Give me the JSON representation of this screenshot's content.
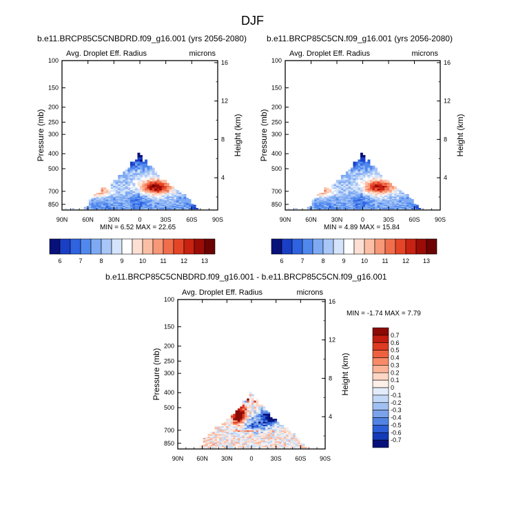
{
  "figure_title": "DJF",
  "chart_data": [
    {
      "type": "heatmap",
      "title": "b.e11.BRCP85C5CNBDRD.f09_g16.001 (yrs 2056-2080)",
      "left_label": "Avg. Droplet Eff. Radius",
      "right_label": "microns",
      "xlabel": "",
      "ylabel": "Pressure (mb)",
      "y2label": "Height (km)",
      "x_ticks": [
        "90N",
        "60N",
        "30N",
        "0",
        "30S",
        "60S",
        "90S"
      ],
      "y_ticks": [
        "100",
        "150",
        "200",
        "250",
        "300",
        "400",
        "500",
        "700",
        "850"
      ],
      "y2_ticks": [
        "16",
        "12",
        "8",
        "4"
      ],
      "stats": "MIN =   6.52  MAX =  22.65",
      "colorbar": {
        "labels": [
          "6",
          "7",
          "8",
          "9",
          "10",
          "11",
          "12",
          "13"
        ],
        "colors": [
          "#08107a",
          "#1a3fc4",
          "#2f63e0",
          "#5188ee",
          "#7eaaf3",
          "#a8c6f7",
          "#d5e4fa",
          "#ffffff",
          "#fde0d3",
          "#fbbfa5",
          "#f79878",
          "#f16e4c",
          "#e44527",
          "#c72212",
          "#9b0c07",
          "#6b0303"
        ]
      }
    },
    {
      "type": "heatmap",
      "title": "b.e11.BRCP85C5CN.f09_g16.001 (yrs 2056-2080)",
      "left_label": "Avg. Droplet Eff. Radius",
      "right_label": "microns",
      "xlabel": "",
      "ylabel": "Pressure (mb)",
      "y2label": "Height (km)",
      "x_ticks": [
        "90N",
        "60N",
        "30N",
        "0",
        "30S",
        "60S",
        "90S"
      ],
      "y_ticks": [
        "100",
        "150",
        "200",
        "250",
        "300",
        "400",
        "500",
        "700",
        "850"
      ],
      "y2_ticks": [
        "16",
        "12",
        "8",
        "4"
      ],
      "stats": "MIN =   4.89  MAX =  15.84",
      "colorbar": {
        "labels": [
          "6",
          "7",
          "8",
          "9",
          "10",
          "11",
          "12",
          "13"
        ],
        "colors": [
          "#08107a",
          "#1a3fc4",
          "#2f63e0",
          "#5188ee",
          "#7eaaf3",
          "#a8c6f7",
          "#d5e4fa",
          "#ffffff",
          "#fde0d3",
          "#fbbfa5",
          "#f79878",
          "#f16e4c",
          "#e44527",
          "#c72212",
          "#9b0c07",
          "#6b0303"
        ]
      }
    },
    {
      "type": "heatmap",
      "title": "b.e11.BRCP85C5CNBDRD.f09_g16.001 - b.e11.BRCP85C5CN.f09_g16.001",
      "left_label": "Avg. Droplet Eff. Radius",
      "right_label": "microns",
      "xlabel": "",
      "ylabel": "Pressure (mb)",
      "y2label": "Height (km)",
      "x_ticks": [
        "90N",
        "60N",
        "30N",
        "0",
        "30S",
        "60S",
        "90S"
      ],
      "y_ticks": [
        "100",
        "150",
        "200",
        "250",
        "300",
        "400",
        "500",
        "700",
        "850"
      ],
      "y2_ticks": [
        "16",
        "12",
        "8",
        "4"
      ],
      "stats": "MIN =  -1.74  MAX =   7.79",
      "colorbar": {
        "labels": [
          "0.7",
          "0.6",
          "0.5",
          "0.4",
          "0.3",
          "0.2",
          "0.1",
          "0",
          "-0.1",
          "-0.2",
          "-0.3",
          "-0.4",
          "-0.5",
          "-0.6",
          "-0.7"
        ],
        "colors": [
          "#8b0a05",
          "#c11d10",
          "#dd3b22",
          "#ee6140",
          "#f78a67",
          "#fbb396",
          "#fdd6c4",
          "#fdf0e8",
          "#e2ecfa",
          "#c3d8f6",
          "#a0c0f1",
          "#7aa3eb",
          "#5183e2",
          "#2c5fd6",
          "#133bb8",
          "#07107a"
        ]
      }
    }
  ]
}
